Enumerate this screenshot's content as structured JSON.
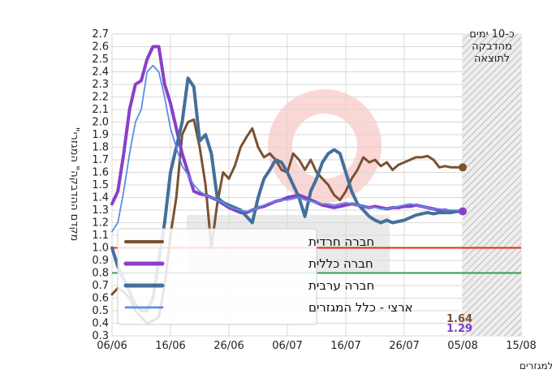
{
  "chart_data": {
    "type": "line",
    "ylabel": "\"מקדם ההדבקה\" המגזרי",
    "footnote": "\"מקדם ההדבקה\" המגזרי מוצג בהשהייה של יום מכיוון שנדרש זמן להשלים את השיוך למגזרים",
    "shaded_note": [
      "כ-10 ימים",
      "מהדבקה",
      "לתוצאה"
    ],
    "ylim": [
      0.3,
      2.7
    ],
    "y_ticks": [
      "0.3",
      "0.4",
      "0.5",
      "0.6",
      "0.7",
      "0.8",
      "0.9",
      "1.0",
      "1.1",
      "1.2",
      "1.3",
      "1.4",
      "1.5",
      "1.6",
      "1.7",
      "1.8",
      "1.9",
      "2.0",
      "2.1",
      "2.2",
      "2.3",
      "2.4",
      "2.5",
      "2.6",
      "2.7"
    ],
    "x_ticks": [
      "06/06",
      "16/06",
      "26/06",
      "06/07",
      "16/07",
      "26/07",
      "05/08",
      "15/08"
    ],
    "xlim_days": [
      0,
      70
    ],
    "shaded_from_day": 60,
    "reference_lines": [
      {
        "value": 1.0,
        "color": "#e8281e"
      },
      {
        "value": 0.8,
        "color": "#3a9a4a"
      }
    ],
    "end_labels": [
      {
        "text": "1.64",
        "color": "#7a5230"
      },
      {
        "text": "1.29",
        "color": "#7b3fbf"
      }
    ],
    "series": [
      {
        "name": "חברה חרדית",
        "color": "#7a5230",
        "width": 3,
        "x": [
          0,
          1,
          2,
          3,
          4,
          5,
          6,
          7,
          8,
          9,
          10,
          11,
          12,
          13,
          14,
          15,
          16,
          17,
          18,
          19,
          20,
          21,
          22,
          23,
          24,
          25,
          26,
          27,
          28,
          29,
          30,
          31,
          32,
          33,
          34,
          35,
          36,
          37,
          38,
          39,
          40,
          41,
          42,
          43,
          44,
          45,
          46,
          47,
          48,
          49,
          50,
          51,
          52,
          53,
          54,
          55,
          56,
          57,
          58,
          59,
          60
        ],
        "y": [
          0.63,
          0.68,
          0.65,
          0.6,
          0.5,
          0.45,
          0.4,
          0.42,
          0.45,
          0.7,
          1.1,
          1.4,
          1.9,
          2.0,
          2.02,
          1.8,
          1.5,
          1.0,
          1.35,
          1.6,
          1.55,
          1.65,
          1.8,
          1.88,
          1.95,
          1.8,
          1.72,
          1.75,
          1.7,
          1.62,
          1.6,
          1.75,
          1.7,
          1.62,
          1.7,
          1.6,
          1.55,
          1.5,
          1.42,
          1.38,
          1.45,
          1.55,
          1.62,
          1.72,
          1.68,
          1.7,
          1.65,
          1.68,
          1.62,
          1.66,
          1.68,
          1.7,
          1.72,
          1.72,
          1.73,
          1.7,
          1.64,
          1.65,
          1.64,
          1.64,
          1.64
        ]
      },
      {
        "name": "חברה כללית",
        "color": "#8a3fc8",
        "width": 4,
        "x": [
          0,
          1,
          2,
          3,
          4,
          5,
          6,
          7,
          8,
          9,
          10,
          11,
          12,
          13,
          14,
          15,
          16,
          17,
          18,
          19,
          20,
          21,
          22,
          23,
          24,
          25,
          26,
          27,
          28,
          29,
          30,
          31,
          32,
          33,
          34,
          35,
          36,
          37,
          38,
          39,
          40,
          41,
          42,
          43,
          44,
          45,
          46,
          47,
          48,
          49,
          50,
          51,
          52,
          53,
          54,
          55,
          56,
          57,
          58,
          59,
          60
        ],
        "y": [
          1.35,
          1.45,
          1.75,
          2.1,
          2.3,
          2.33,
          2.5,
          2.6,
          2.6,
          2.3,
          2.15,
          1.95,
          1.75,
          1.6,
          1.45,
          1.43,
          1.42,
          1.4,
          1.38,
          1.35,
          1.32,
          1.3,
          1.28,
          1.28,
          1.3,
          1.32,
          1.33,
          1.35,
          1.37,
          1.38,
          1.4,
          1.41,
          1.42,
          1.4,
          1.38,
          1.36,
          1.34,
          1.33,
          1.32,
          1.33,
          1.34,
          1.35,
          1.34,
          1.33,
          1.32,
          1.33,
          1.32,
          1.31,
          1.32,
          1.32,
          1.33,
          1.33,
          1.34,
          1.33,
          1.32,
          1.31,
          1.3,
          1.3,
          1.29,
          1.29,
          1.29
        ]
      },
      {
        "name": "חברה ערבית",
        "color": "#44709a",
        "width": 4,
        "x": [
          0,
          1,
          2,
          3,
          4,
          5,
          6,
          7,
          8,
          9,
          10,
          11,
          12,
          13,
          14,
          15,
          16,
          17,
          18,
          19,
          20,
          21,
          22,
          23,
          24,
          25,
          26,
          27,
          28,
          29,
          30,
          31,
          32,
          33,
          34,
          35,
          36,
          37,
          38,
          39,
          40,
          41,
          42,
          43,
          44,
          45,
          46,
          47,
          48,
          49,
          50,
          51,
          52,
          53,
          54,
          55,
          56,
          57,
          58,
          59,
          60
        ],
        "y": [
          1.0,
          0.85,
          0.75,
          0.65,
          0.55,
          0.5,
          0.5,
          0.6,
          0.9,
          1.2,
          1.6,
          1.8,
          2.0,
          2.35,
          2.28,
          1.85,
          1.9,
          1.75,
          1.4,
          1.36,
          1.34,
          1.32,
          1.3,
          1.25,
          1.2,
          1.4,
          1.55,
          1.62,
          1.7,
          1.68,
          1.6,
          1.5,
          1.4,
          1.25,
          1.45,
          1.55,
          1.68,
          1.75,
          1.78,
          1.75,
          1.6,
          1.45,
          1.35,
          1.3,
          1.25,
          1.22,
          1.2,
          1.22,
          1.2,
          1.21,
          1.22,
          1.24,
          1.26,
          1.27,
          1.28,
          1.27,
          1.28,
          1.28,
          1.28,
          1.29,
          1.29
        ]
      },
      {
        "name": "ארצי - כלל המגזרים",
        "color": "#5b8de8",
        "width": 1.8,
        "x": [
          0,
          1,
          2,
          3,
          4,
          5,
          6,
          7,
          8,
          9,
          10,
          11,
          12,
          13,
          14,
          15,
          16,
          17,
          18,
          19,
          20,
          21,
          22,
          23,
          24,
          25,
          26,
          27,
          28,
          29,
          30,
          31,
          32,
          33,
          34,
          35,
          36,
          37,
          38,
          39,
          40,
          41,
          42,
          43,
          44,
          45,
          46,
          47,
          48,
          49,
          50,
          51,
          52,
          53,
          54,
          55,
          56,
          57,
          58,
          59,
          60
        ],
        "y": [
          1.13,
          1.2,
          1.45,
          1.75,
          2.0,
          2.1,
          2.4,
          2.45,
          2.4,
          2.2,
          1.95,
          1.8,
          1.65,
          1.58,
          1.5,
          1.45,
          1.42,
          1.4,
          1.38,
          1.36,
          1.33,
          1.31,
          1.3,
          1.29,
          1.3,
          1.32,
          1.34,
          1.36,
          1.37,
          1.38,
          1.38,
          1.39,
          1.4,
          1.38,
          1.37,
          1.36,
          1.35,
          1.35,
          1.34,
          1.35,
          1.36,
          1.35,
          1.34,
          1.33,
          1.32,
          1.32,
          1.31,
          1.31,
          1.32,
          1.33,
          1.34,
          1.35,
          1.34,
          1.33,
          1.32,
          1.31,
          1.31,
          1.3,
          1.3,
          1.3,
          1.3
        ]
      }
    ],
    "legend_placement": "lower-left"
  }
}
